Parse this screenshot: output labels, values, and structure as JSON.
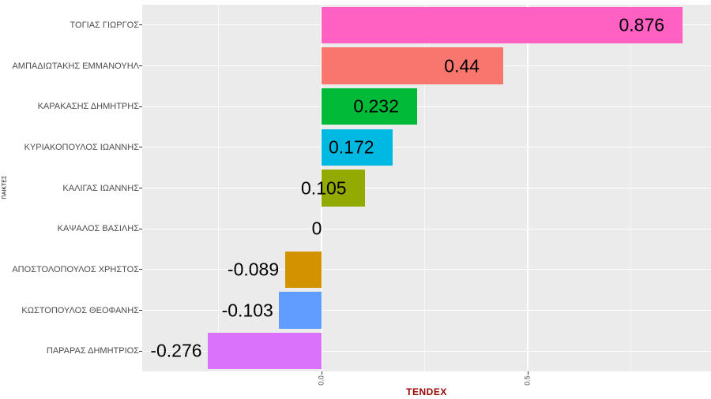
{
  "chart_data": {
    "type": "bar",
    "orientation": "horizontal",
    "title": "",
    "xlabel": "TENDEX",
    "ylabel": "ΠΑΙΚΤΕΣ",
    "categories": [
      "ΤΟΓΙΑΣ ΓΙΩΡΓΟΣ",
      "ΑΜΠΑΔΙΩΤΑΚΗΣ ΕΜΜΑΝΟΥΗΛ",
      "ΚΑΡΑΚΑΣΗΣ ΔΗΜΗΤΡΗΣ",
      "ΚΥΡΙΑΚΟΠΟΥΛΟΣ ΙΩΑΝΝΗΣ",
      "ΚΑΛΙΓΑΣ ΙΩΑΝΝΗΣ",
      "ΚΑΨΑΛΟΣ ΒΑΣΙΛΗΣ",
      "ΑΠΟΣΤΟΛΟΠΟΥΛΟΣ ΧΡΗΣΤΟΣ",
      "ΚΩΣΤΟΠΟΥΛΟΣ ΘΕΟΦΑΝΗΣ",
      "ΠΑΡΑΡΑΣ ΔΗΜΗΤΡΙΟΣ"
    ],
    "values": [
      0.876,
      0.44,
      0.232,
      0.172,
      0.105,
      0,
      -0.089,
      -0.103,
      -0.276
    ],
    "value_labels": [
      "0.876",
      "0.44",
      "0.232",
      "0.172",
      "0.105",
      "0",
      "-0.089",
      "-0.103",
      "-0.276"
    ],
    "bar_colors": [
      "#FF61C3",
      "#F8766D",
      "#00BA38",
      "#00B9E3",
      "#93AA00",
      "#00C19F",
      "#D39200",
      "#619CFF",
      "#DB72FB"
    ],
    "x_ticks": [
      {
        "value": 0.0,
        "label": "0.0"
      },
      {
        "value": 0.5,
        "label": "0.5"
      }
    ],
    "x_minor_grid": [
      -0.25,
      0.25,
      0.75
    ],
    "xlim": [
      -0.44,
      0.94
    ],
    "grid": true,
    "legend": false,
    "bar_width_fraction": 0.9
  },
  "style": {
    "background": "#FFFFFF",
    "panel_bg": "#EBEBEB",
    "grid_color": "#FFFFFF",
    "axis_text_color": "#4D4D4D",
    "tick_color": "#333333",
    "value_label_color": "#000000",
    "x_title_color": "#990000",
    "y_title_color": "#000000"
  }
}
